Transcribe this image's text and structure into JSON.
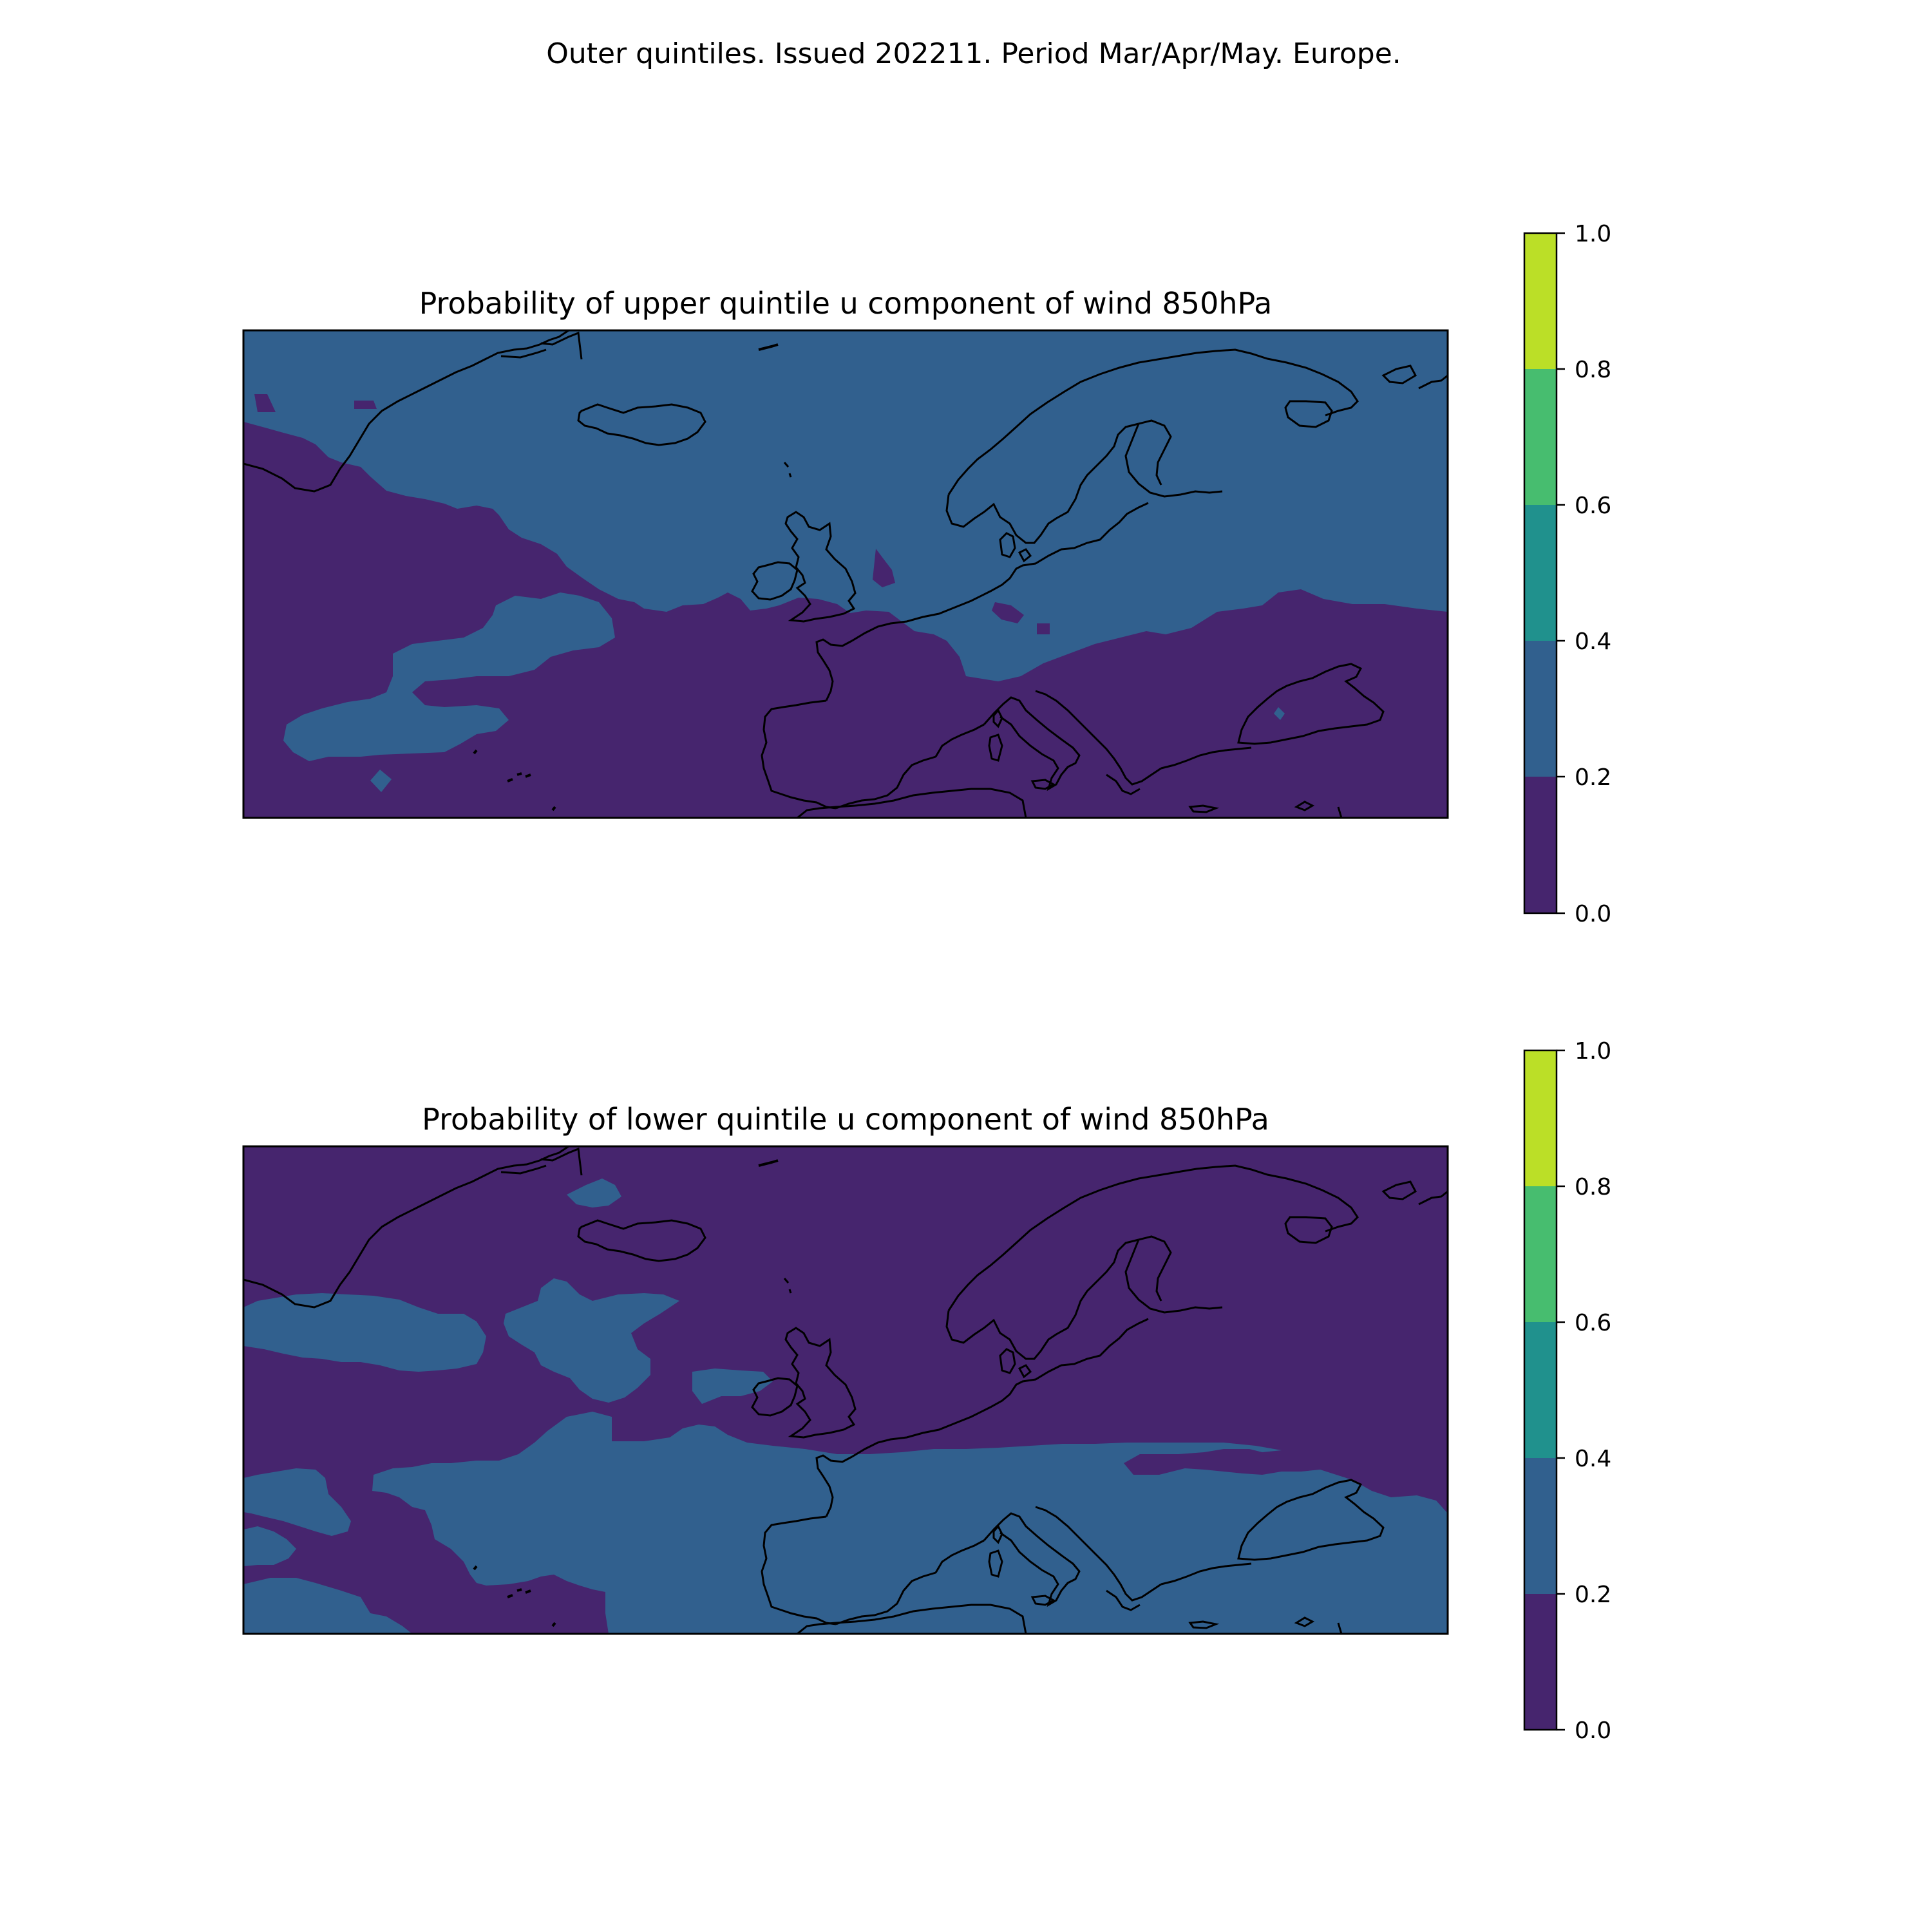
{
  "figure": {
    "title": "Outer quintiles. Issued 202211. Period Mar/Apr/May. Europe."
  },
  "colormap": {
    "levels": [
      0.0,
      0.2,
      0.4,
      0.6,
      0.8,
      1.0
    ],
    "tick_labels": [
      "0.0",
      "0.2",
      "0.4",
      "0.6",
      "0.8",
      "1.0"
    ],
    "colors": [
      "#46256e",
      "#31608e",
      "#20918d",
      "#47bd6f",
      "#bbdf27"
    ]
  },
  "panels": [
    {
      "id": "upper",
      "title": "Probability of upper quintile u component of wind 850hPa",
      "dominant_class": "0.2-0.4 over north, 0.0-0.2 over south and Atlantic"
    },
    {
      "id": "lower",
      "title": "Probability of lower quintile u component of wind 850hPa",
      "dominant_class": "0.0-0.2 over north, 0.2-0.4 over south"
    }
  ],
  "map_style": {
    "coastline_color": "#000000",
    "frame_color": "#000000"
  }
}
